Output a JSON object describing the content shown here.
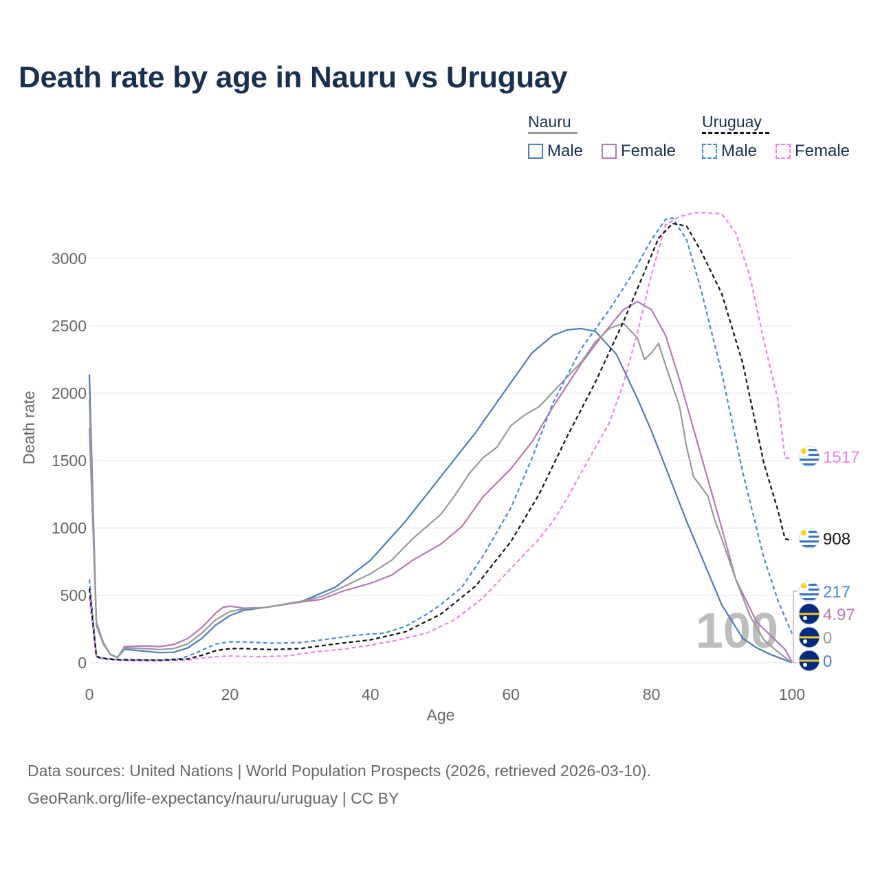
{
  "title": "Death rate by age in Nauru vs Uruguay",
  "legend": {
    "nauru_label": "Nauru",
    "uruguay_label": "Uruguay",
    "male_label": "Male",
    "female_label": "Female"
  },
  "sources": {
    "line1": "Data sources: United Nations | World Population Prospects (2026, retrieved 2026-03-10).",
    "line2": "GeoRank.org/life-expectancy/nauru/uruguay | CC BY"
  },
  "year_watermark": "100",
  "colors": {
    "nauru_male": "#4a7cc0",
    "nauru_female": "#b877b4",
    "nauru_total": "#999999",
    "uruguay_male": "#3d8ae8",
    "uruguay_female": "#f77cf0",
    "uruguay_total": "#111111",
    "grid": "#e6e6e6",
    "axis_text": "#666666"
  },
  "chart_data": {
    "type": "line",
    "xlabel": "Age",
    "ylabel": "Death rate",
    "xlim": [
      0,
      100
    ],
    "ylim": [
      0,
      3400
    ],
    "xticks": [
      0,
      20,
      40,
      60,
      80,
      100
    ],
    "yticks": [
      0,
      500,
      1000,
      1500,
      2000,
      2500,
      3000
    ],
    "series": [
      {
        "name": "Nauru Male",
        "key": "nauru_male",
        "dash": false,
        "points": [
          [
            0,
            2140
          ],
          [
            1,
            280
          ],
          [
            2,
            140
          ],
          [
            3,
            60
          ],
          [
            4,
            40
          ],
          [
            5,
            100
          ],
          [
            8,
            85
          ],
          [
            10,
            75
          ],
          [
            12,
            78
          ],
          [
            14,
            110
          ],
          [
            16,
            180
          ],
          [
            18,
            280
          ],
          [
            20,
            350
          ],
          [
            22,
            390
          ],
          [
            25,
            410
          ],
          [
            30,
            450
          ],
          [
            35,
            560
          ],
          [
            40,
            760
          ],
          [
            45,
            1050
          ],
          [
            50,
            1380
          ],
          [
            55,
            1710
          ],
          [
            60,
            2080
          ],
          [
            63,
            2300
          ],
          [
            66,
            2430
          ],
          [
            68,
            2470
          ],
          [
            70,
            2480
          ],
          [
            72,
            2460
          ],
          [
            75,
            2290
          ],
          [
            78,
            1960
          ],
          [
            80,
            1720
          ],
          [
            85,
            1050
          ],
          [
            90,
            430
          ],
          [
            93,
            180
          ],
          [
            95,
            110
          ],
          [
            97,
            60
          ],
          [
            100,
            0
          ]
        ],
        "end_label": "0"
      },
      {
        "name": "Nauru Female",
        "key": "nauru_female",
        "dash": false,
        "points": [
          [
            0,
            1740
          ],
          [
            1,
            300
          ],
          [
            2,
            150
          ],
          [
            3,
            60
          ],
          [
            4,
            40
          ],
          [
            5,
            120
          ],
          [
            8,
            125
          ],
          [
            10,
            120
          ],
          [
            12,
            135
          ],
          [
            14,
            180
          ],
          [
            16,
            260
          ],
          [
            18,
            370
          ],
          [
            19,
            410
          ],
          [
            20,
            420
          ],
          [
            22,
            405
          ],
          [
            25,
            410
          ],
          [
            30,
            450
          ],
          [
            33,
            470
          ],
          [
            36,
            530
          ],
          [
            40,
            590
          ],
          [
            43,
            650
          ],
          [
            46,
            760
          ],
          [
            50,
            880
          ],
          [
            53,
            1010
          ],
          [
            56,
            1230
          ],
          [
            60,
            1440
          ],
          [
            63,
            1640
          ],
          [
            66,
            1900
          ],
          [
            70,
            2220
          ],
          [
            73,
            2430
          ],
          [
            76,
            2620
          ],
          [
            78,
            2680
          ],
          [
            80,
            2620
          ],
          [
            82,
            2430
          ],
          [
            84,
            2100
          ],
          [
            87,
            1550
          ],
          [
            90,
            1000
          ],
          [
            92,
            620
          ],
          [
            95,
            300
          ],
          [
            98,
            150
          ],
          [
            99,
            100
          ],
          [
            100,
            5
          ]
        ],
        "end_label": "4.97"
      },
      {
        "name": "Nauru Total",
        "key": "nauru_total",
        "dash": false,
        "points": [
          [
            0,
            1950
          ],
          [
            1,
            290
          ],
          [
            2,
            145
          ],
          [
            3,
            60
          ],
          [
            4,
            40
          ],
          [
            5,
            110
          ],
          [
            8,
            105
          ],
          [
            10,
            98
          ],
          [
            12,
            105
          ],
          [
            14,
            140
          ],
          [
            16,
            220
          ],
          [
            18,
            320
          ],
          [
            20,
            380
          ],
          [
            22,
            400
          ],
          [
            25,
            410
          ],
          [
            30,
            455
          ],
          [
            33,
            490
          ],
          [
            36,
            560
          ],
          [
            40,
            660
          ],
          [
            43,
            760
          ],
          [
            46,
            920
          ],
          [
            50,
            1100
          ],
          [
            52,
            1240
          ],
          [
            54,
            1400
          ],
          [
            56,
            1520
          ],
          [
            58,
            1600
          ],
          [
            60,
            1760
          ],
          [
            62,
            1840
          ],
          [
            64,
            1900
          ],
          [
            66,
            2010
          ],
          [
            68,
            2120
          ],
          [
            70,
            2230
          ],
          [
            72,
            2380
          ],
          [
            74,
            2480
          ],
          [
            76,
            2520
          ],
          [
            78,
            2410
          ],
          [
            79,
            2250
          ],
          [
            80,
            2300
          ],
          [
            81,
            2370
          ],
          [
            82,
            2210
          ],
          [
            84,
            1900
          ],
          [
            85,
            1600
          ],
          [
            86,
            1380
          ],
          [
            88,
            1240
          ],
          [
            89,
            1060
          ],
          [
            90,
            920
          ],
          [
            92,
            620
          ],
          [
            94,
            350
          ],
          [
            96,
            170
          ],
          [
            98,
            80
          ],
          [
            100,
            0
          ]
        ],
        "end_label": "0"
      },
      {
        "name": "Uruguay Male",
        "key": "uruguay_male",
        "dash": true,
        "points": [
          [
            0,
            620
          ],
          [
            1,
            50
          ],
          [
            2,
            35
          ],
          [
            4,
            25
          ],
          [
            6,
            22
          ],
          [
            10,
            20
          ],
          [
            13,
            30
          ],
          [
            15,
            70
          ],
          [
            18,
            140
          ],
          [
            20,
            155
          ],
          [
            22,
            155
          ],
          [
            26,
            145
          ],
          [
            30,
            150
          ],
          [
            34,
            175
          ],
          [
            36,
            190
          ],
          [
            38,
            205
          ],
          [
            42,
            220
          ],
          [
            45,
            270
          ],
          [
            48,
            360
          ],
          [
            50,
            430
          ],
          [
            53,
            560
          ],
          [
            56,
            790
          ],
          [
            60,
            1150
          ],
          [
            63,
            1520
          ],
          [
            66,
            1930
          ],
          [
            70,
            2330
          ],
          [
            74,
            2620
          ],
          [
            77,
            2860
          ],
          [
            80,
            3140
          ],
          [
            82,
            3290
          ],
          [
            83,
            3300
          ],
          [
            85,
            3140
          ],
          [
            87,
            2780
          ],
          [
            90,
            2150
          ],
          [
            93,
            1410
          ],
          [
            96,
            780
          ],
          [
            98,
            460
          ],
          [
            100,
            217
          ]
        ],
        "end_label": "217"
      },
      {
        "name": "Uruguay Female",
        "key": "uruguay_female",
        "dash": true,
        "points": [
          [
            0,
            480
          ],
          [
            1,
            40
          ],
          [
            2,
            28
          ],
          [
            4,
            20
          ],
          [
            6,
            16
          ],
          [
            10,
            15
          ],
          [
            14,
            20
          ],
          [
            16,
            35
          ],
          [
            18,
            45
          ],
          [
            20,
            50
          ],
          [
            24,
            45
          ],
          [
            28,
            50
          ],
          [
            32,
            80
          ],
          [
            36,
            100
          ],
          [
            40,
            130
          ],
          [
            44,
            170
          ],
          [
            48,
            220
          ],
          [
            52,
            320
          ],
          [
            56,
            480
          ],
          [
            60,
            700
          ],
          [
            64,
            920
          ],
          [
            66,
            1050
          ],
          [
            68,
            1220
          ],
          [
            70,
            1410
          ],
          [
            74,
            1780
          ],
          [
            76,
            2070
          ],
          [
            78,
            2450
          ],
          [
            80,
            2880
          ],
          [
            82,
            3250
          ],
          [
            84,
            3310
          ],
          [
            86,
            3340
          ],
          [
            88,
            3340
          ],
          [
            90,
            3330
          ],
          [
            92,
            3190
          ],
          [
            94,
            2870
          ],
          [
            96,
            2390
          ],
          [
            98,
            1950
          ],
          [
            99,
            1520
          ],
          [
            100,
            1517
          ]
        ],
        "end_label": "1517"
      },
      {
        "name": "Uruguay Total",
        "key": "uruguay_total",
        "dash": true,
        "points": [
          [
            0,
            550
          ],
          [
            1,
            45
          ],
          [
            2,
            32
          ],
          [
            4,
            22
          ],
          [
            6,
            20
          ],
          [
            10,
            18
          ],
          [
            14,
            28
          ],
          [
            16,
            55
          ],
          [
            18,
            90
          ],
          [
            20,
            105
          ],
          [
            22,
            105
          ],
          [
            26,
            98
          ],
          [
            30,
            105
          ],
          [
            35,
            140
          ],
          [
            40,
            170
          ],
          [
            45,
            230
          ],
          [
            50,
            360
          ],
          [
            55,
            570
          ],
          [
            60,
            900
          ],
          [
            64,
            1250
          ],
          [
            68,
            1680
          ],
          [
            72,
            2080
          ],
          [
            76,
            2530
          ],
          [
            79,
            2900
          ],
          [
            81,
            3150
          ],
          [
            83,
            3260
          ],
          [
            85,
            3240
          ],
          [
            87,
            3060
          ],
          [
            90,
            2740
          ],
          [
            93,
            2220
          ],
          [
            96,
            1480
          ],
          [
            98,
            1130
          ],
          [
            99,
            920
          ],
          [
            100,
            908
          ]
        ],
        "end_label": "908"
      }
    ]
  }
}
